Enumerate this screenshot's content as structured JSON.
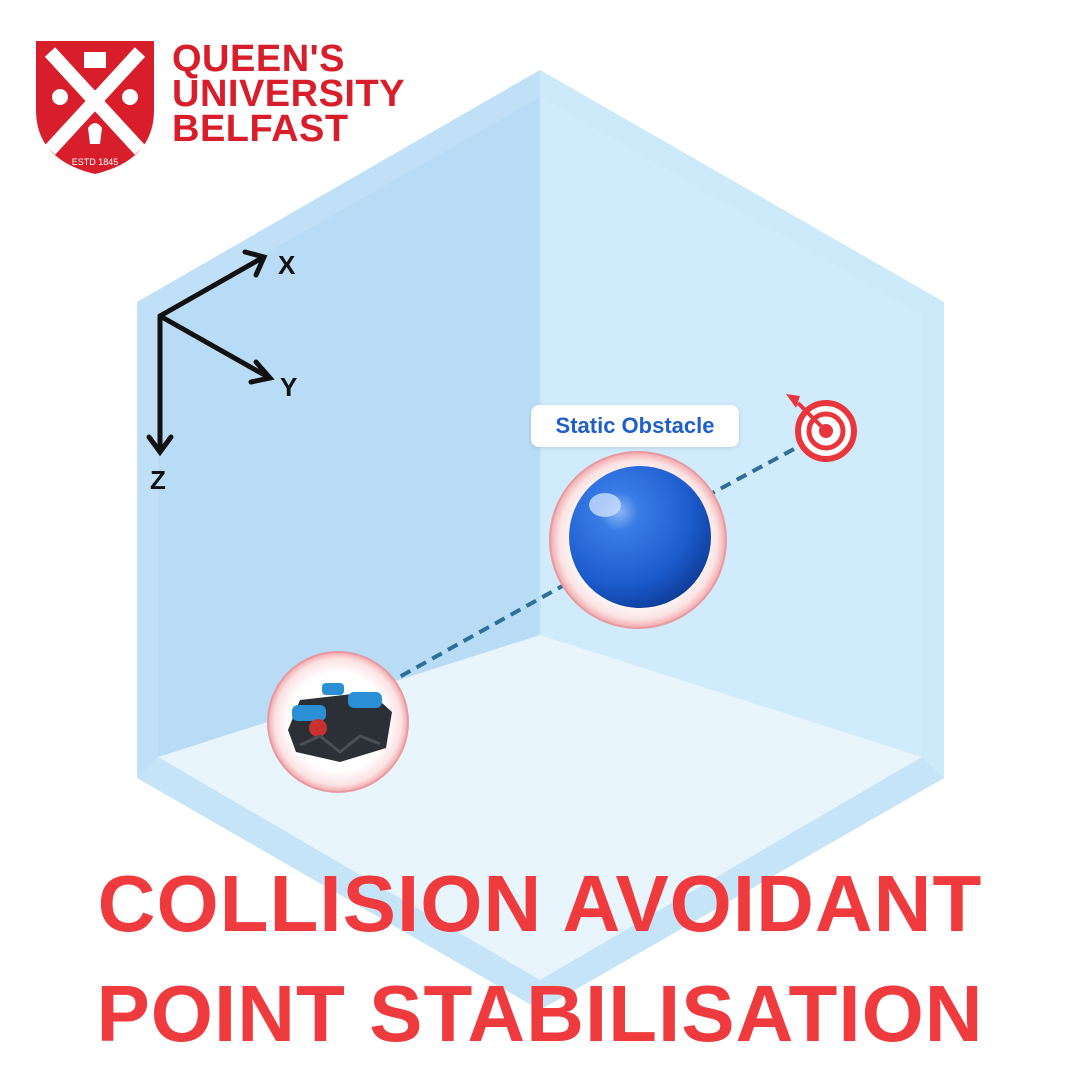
{
  "logo": {
    "line1": "QUEEN'S",
    "line2": "UNIVERSITY",
    "line3": "BELFAST",
    "crest_text": "ESTD 1845",
    "color": "#d81e2b"
  },
  "axes": {
    "x": "X",
    "y": "Y",
    "z": "Z"
  },
  "obstacle_label": "Static Obstacle",
  "title": {
    "line1": "COLLISION AVOIDANT",
    "line2": "POINT STABILISATION",
    "color": "#ef3a3e"
  },
  "colors": {
    "room_light": "#e9f5fd",
    "room_mid": "#cfeafb",
    "room_dark": "#b9ddf5",
    "sphere": "#1f63d6",
    "path": "#2e6f9a",
    "target": "#e8363c"
  },
  "icons": [
    "crest-icon",
    "target-icon",
    "rov-icon",
    "sphere-icon"
  ]
}
